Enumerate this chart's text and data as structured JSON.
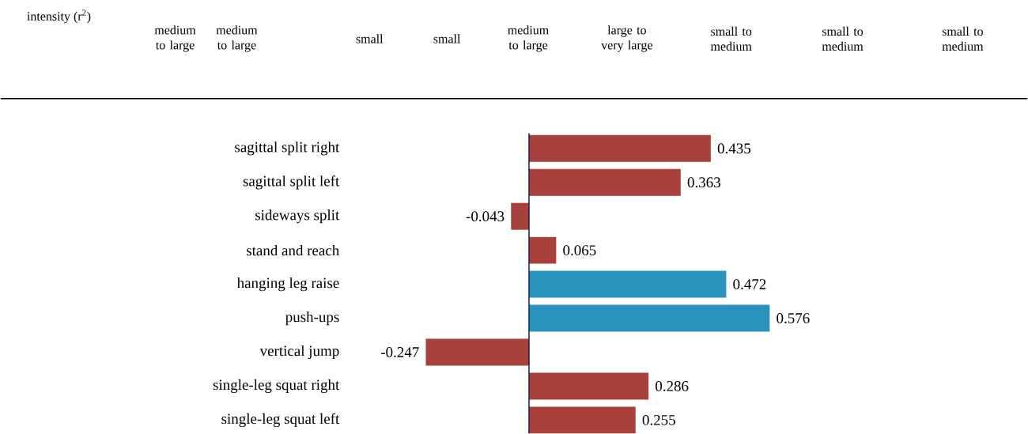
{
  "chart_data": {
    "type": "bar",
    "orientation": "horizontal",
    "categories": [
      "sagittal split right",
      "sagittal split left",
      "sideways split",
      "stand and reach",
      "hanging leg raise",
      "push-ups",
      "vertical jump",
      "single-leg squat right",
      "single-leg squat left"
    ],
    "values": [
      0.435,
      0.363,
      -0.043,
      0.065,
      0.472,
      0.576,
      -0.247,
      0.286,
      0.255
    ],
    "colors": [
      "#a8403c",
      "#a8403c",
      "#a8403c",
      "#a8403c",
      "#2a93bd",
      "#2a93bd",
      "#a8403c",
      "#a8403c",
      "#a8403c"
    ],
    "data_labels": true,
    "annotations": [
      "intensity (r$^{2}$)",
      "medium to large",
      "medium to large",
      "small",
      "small",
      "medium to large",
      "large to very large",
      "small to medium",
      "small to medium",
      "small to medium"
    ]
  }
}
